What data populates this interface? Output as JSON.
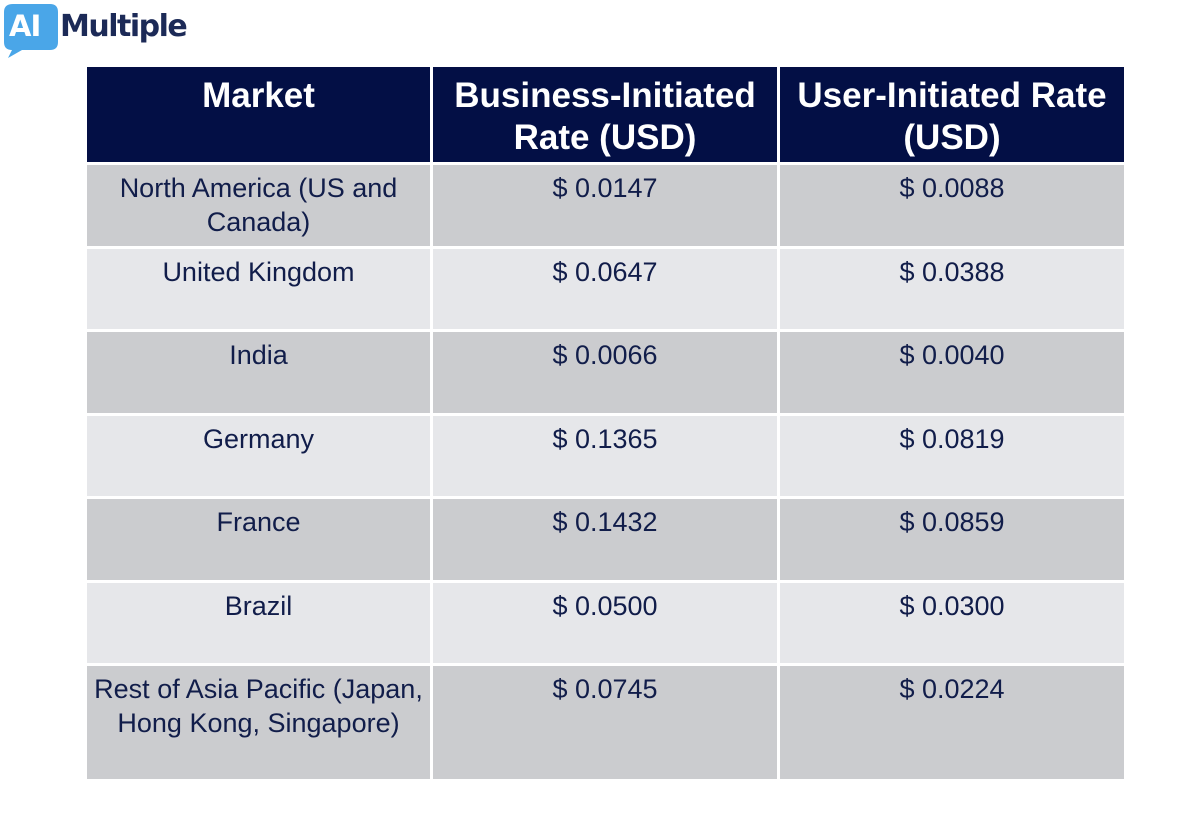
{
  "brand": {
    "logo_mark": "AI",
    "logo_word": "Multiple",
    "colors": {
      "logo_badge": "#4aa6e8",
      "logo_text": "#1c2a57",
      "header_bg": "#030f45",
      "row_dark": "#cbcccf",
      "row_light": "#e6e7ea"
    }
  },
  "chart_data": {
    "type": "table",
    "columns": [
      "Market",
      "Business-Initiated Rate (USD)",
      "User-Initiated Rate (USD)"
    ],
    "rows": [
      [
        "North America (US and Canada)",
        "$ 0.0147",
        "$ 0.0088"
      ],
      [
        "United Kingdom",
        "$ 0.0647",
        "$ 0.0388"
      ],
      [
        "India",
        "$ 0.0066",
        "$ 0.0040"
      ],
      [
        "Germany",
        "$ 0.1365",
        "$ 0.0819"
      ],
      [
        "France",
        "$ 0.1432",
        "$ 0.0859"
      ],
      [
        "Brazil",
        "$ 0.0500",
        "$ 0.0300"
      ],
      [
        "Rest of Asia Pacific (Japan, Hong Kong, Singapore)",
        "$ 0.0745",
        "$ 0.0224"
      ]
    ]
  }
}
